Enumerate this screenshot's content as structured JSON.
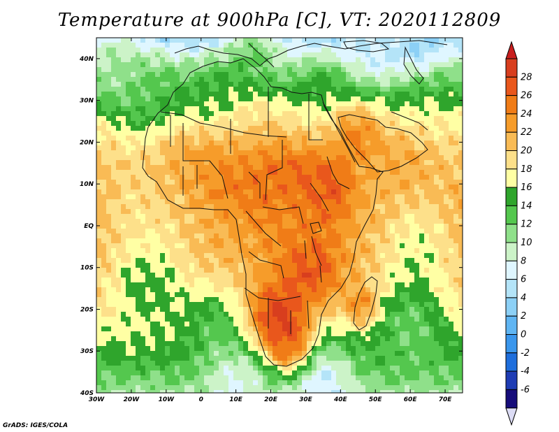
{
  "title": "Temperature at 900hPa [C], VT: 2020112809",
  "footer": "GrADS: IGES/COLA",
  "map": {
    "projection": "lat-lon",
    "lon_range": [
      -30,
      75
    ],
    "lat_range": [
      -40,
      45
    ],
    "lon_ticks": [
      {
        "value": -30,
        "label": "30W"
      },
      {
        "value": -20,
        "label": "20W"
      },
      {
        "value": -10,
        "label": "10W"
      },
      {
        "value": 0,
        "label": "0"
      },
      {
        "value": 10,
        "label": "10E"
      },
      {
        "value": 20,
        "label": "20E"
      },
      {
        "value": 30,
        "label": "30E"
      },
      {
        "value": 40,
        "label": "40E"
      },
      {
        "value": 50,
        "label": "50E"
      },
      {
        "value": 60,
        "label": "60E"
      },
      {
        "value": 70,
        "label": "70E"
      }
    ],
    "lat_ticks": [
      {
        "value": 40,
        "label": "40N"
      },
      {
        "value": 30,
        "label": "30N"
      },
      {
        "value": 20,
        "label": "20N"
      },
      {
        "value": 10,
        "label": "10N"
      },
      {
        "value": 0,
        "label": "EQ"
      },
      {
        "value": -10,
        "label": "10S"
      },
      {
        "value": -20,
        "label": "20S"
      },
      {
        "value": -30,
        "label": "30S"
      },
      {
        "value": -40,
        "label": "40S"
      }
    ]
  },
  "colorbar": {
    "units": "C",
    "levels": [
      -6,
      -4,
      -2,
      0,
      2,
      4,
      6,
      8,
      10,
      12,
      14,
      16,
      18,
      20,
      22,
      24,
      26,
      28
    ],
    "colors": [
      "#160c7a",
      "#1e3cb4",
      "#1e6edc",
      "#3a96ec",
      "#5fb5f3",
      "#8cd0f6",
      "#b4e4f8",
      "#dff6ff",
      "#ccf3c8",
      "#8fe08a",
      "#54c74e",
      "#2fa52c",
      "#ffffa4",
      "#fde08a",
      "#f9bb55",
      "#f69c2a",
      "#f07c17",
      "#e9571c",
      "#d83e1e"
    ],
    "under_color": "#dcdcf5",
    "over_color": "#c81e1e"
  },
  "temperature_field": {
    "sources": [
      {
        "lon": 21,
        "lat": -22,
        "t": 29,
        "r": 6
      },
      {
        "lon": 32,
        "lat": -10,
        "t": 27,
        "r": 6
      },
      {
        "lon": 24,
        "lat": 10,
        "t": 26,
        "r": 8
      },
      {
        "lon": 37,
        "lat": 9,
        "t": 27,
        "r": 5
      },
      {
        "lon": 26,
        "lat": -29,
        "t": 27,
        "r": 4
      },
      {
        "lon": 46.5,
        "lat": -19,
        "t": 26,
        "r": 3
      },
      {
        "lon": 8,
        "lat": 12,
        "t": 25,
        "r": 6
      },
      {
        "lon": -5,
        "lat": 13,
        "t": 23,
        "r": 6
      },
      {
        "lon": 45,
        "lat": 22,
        "t": 24,
        "r": 5
      },
      {
        "lon": 25,
        "lat": 1,
        "t": 23,
        "r": 6
      },
      {
        "lon": 58,
        "lat": 14,
        "t": 22,
        "r": 6
      },
      {
        "lon": 12,
        "lat": 24,
        "t": 19,
        "r": 6
      },
      {
        "lon": 6,
        "lat": 32,
        "t": 14,
        "r": 5
      },
      {
        "lon": 35,
        "lat": 33,
        "t": 15,
        "r": 4
      },
      {
        "lon": 15,
        "lat": 41,
        "t": 12,
        "r": 5
      },
      {
        "lon": 50,
        "lat": 42,
        "t": 6,
        "r": 6
      },
      {
        "lon": 62,
        "lat": 44,
        "t": 4,
        "r": 4
      },
      {
        "lon": -15,
        "lat": 30,
        "t": 13,
        "r": 6
      },
      {
        "lon": -15,
        "lat": -15,
        "t": 15,
        "r": 8
      },
      {
        "lon": -15,
        "lat": 5,
        "t": 19,
        "r": 10
      },
      {
        "lon": 5,
        "lat": -25,
        "t": 13,
        "r": 7
      },
      {
        "lon": 10,
        "lat": -37,
        "t": 7,
        "r": 6
      },
      {
        "lon": 35,
        "lat": -37,
        "t": 6,
        "r": 6
      },
      {
        "lon": 60,
        "lat": -25,
        "t": 12,
        "r": 8
      },
      {
        "lon": 62,
        "lat": -5,
        "t": 17,
        "r": 8
      },
      {
        "lon": -25,
        "lat": 38,
        "t": 10,
        "r": 6
      }
    ]
  }
}
